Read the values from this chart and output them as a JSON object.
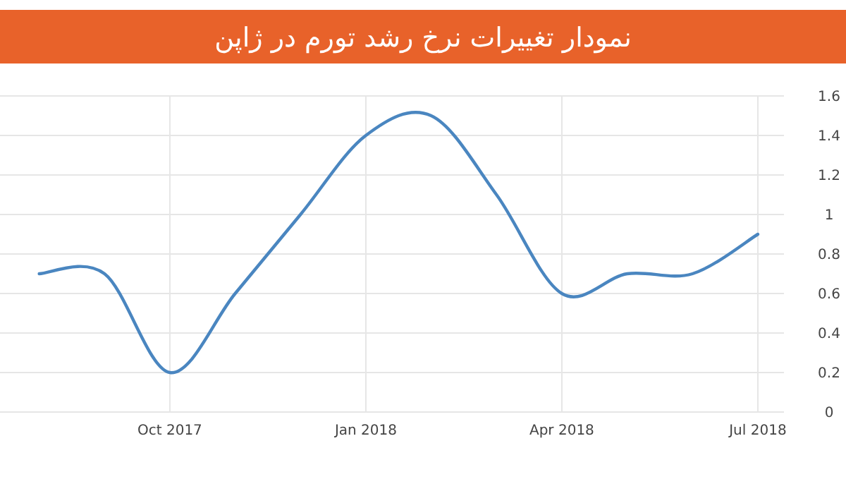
{
  "chart_data": {
    "type": "line",
    "title": "نمودار تغییرات نرخ رشد تورم در ژاپن",
    "x": [
      "2017-08",
      "2017-09",
      "2017-10",
      "2017-11",
      "2017-12",
      "2018-01",
      "2018-02",
      "2018-03",
      "2018-04",
      "2018-05",
      "2018-06",
      "2018-07"
    ],
    "series": [
      {
        "color": "#4a86c0",
        "values": [
          0.7,
          0.7,
          0.2,
          0.6,
          1.0,
          1.4,
          1.5,
          1.1,
          0.6,
          0.7,
          0.7,
          0.9
        ]
      }
    ],
    "xlim": [
      "2017-07-13",
      "2018-07-13"
    ],
    "xticks": [
      {
        "value": "2017-10",
        "label": "Oct 2017"
      },
      {
        "value": "2018-01",
        "label": "Jan 2018"
      },
      {
        "value": "2018-04",
        "label": "Apr 2018"
      },
      {
        "value": "2018-07",
        "label": "Jul 2018"
      }
    ],
    "ylim": [
      0,
      1.6
    ],
    "yticks": [
      0,
      0.2,
      0.4,
      0.6,
      0.8,
      1,
      1.2,
      1.4,
      1.6
    ],
    "grid": true,
    "marker": "none",
    "line_style": "solid"
  }
}
